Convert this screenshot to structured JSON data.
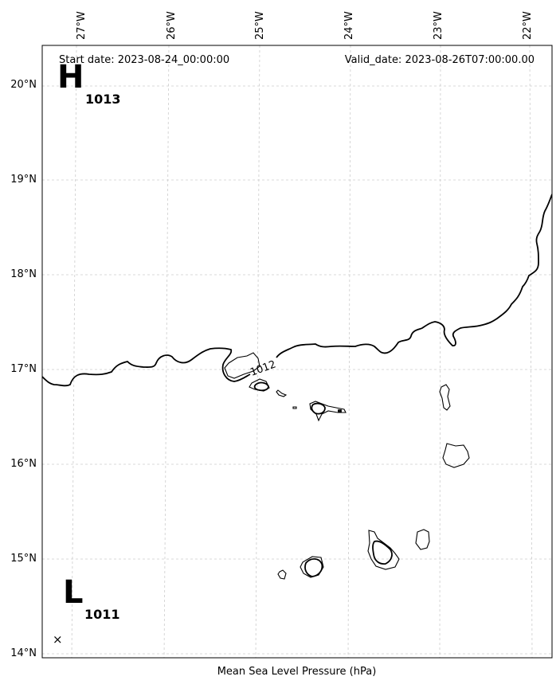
{
  "header": {
    "start_date": "Start date: 2023-08-24_00:00:00",
    "valid_date": "Valid_date: 2023-08-26T07:00:00.00"
  },
  "footer": {
    "label": "Mean Sea Level Pressure (hPa)"
  },
  "axes": {
    "lon_ticks": [
      "27°W",
      "26°W",
      "25°W",
      "24°W",
      "23°W",
      "22°W"
    ],
    "lat_ticks": [
      "20°N",
      "19°N",
      "18°N",
      "17°N",
      "16°N",
      "15°N",
      "14°N"
    ]
  },
  "centers": {
    "high": {
      "letter": "H",
      "value": "1013"
    },
    "low": {
      "letter": "L",
      "value": "1011",
      "marker": "×"
    }
  },
  "isobars": [
    {
      "label": "1012"
    }
  ]
}
